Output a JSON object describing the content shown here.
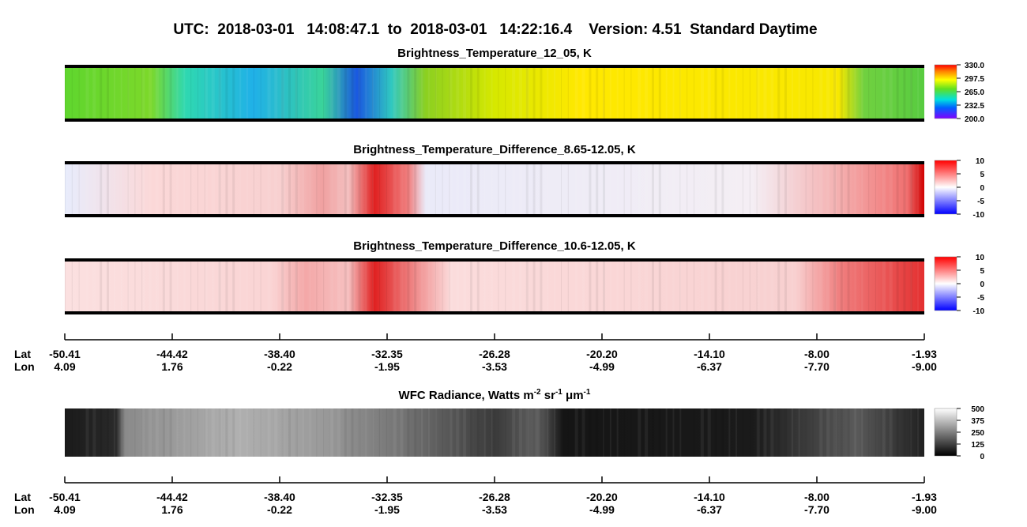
{
  "title": "UTC:  2018-03-01   14:08:47.1  to  2018-03-01   14:22:16.4    Version: 4.51  Standard Daytime",
  "panels": [
    {
      "title": "Brightness_Temperature_12_05, K",
      "colorbar": [
        "330.0",
        "297.5",
        "265.0",
        "232.5",
        "200.0"
      ]
    },
    {
      "title": "Brightness_Temperature_Difference_8.65-12.05, K",
      "colorbar": [
        "10",
        "5",
        "0",
        "-5",
        "-10"
      ]
    },
    {
      "title": "Brightness_Temperature_Difference_10.6-12.05, K",
      "colorbar": [
        "10",
        "5",
        "0",
        "-5",
        "-10"
      ]
    },
    {
      "title_parts": [
        "WFC Radiance, Watts m",
        "-2",
        " sr",
        "-1",
        " μm",
        "-1"
      ],
      "colorbar": [
        "500",
        "375",
        "250",
        "125",
        "0"
      ]
    }
  ],
  "axis": {
    "lat_label": "Lat",
    "lon_label": "Lon",
    "lat": [
      "-50.41",
      "-44.42",
      "-38.40",
      "-32.35",
      "-26.28",
      "-20.20",
      "-14.10",
      "-8.00",
      "-1.93"
    ],
    "lon": [
      "4.09",
      "1.76",
      "-0.22",
      "-1.95",
      "-3.53",
      "-4.99",
      "-6.37",
      "-7.70",
      "-9.00"
    ]
  }
}
